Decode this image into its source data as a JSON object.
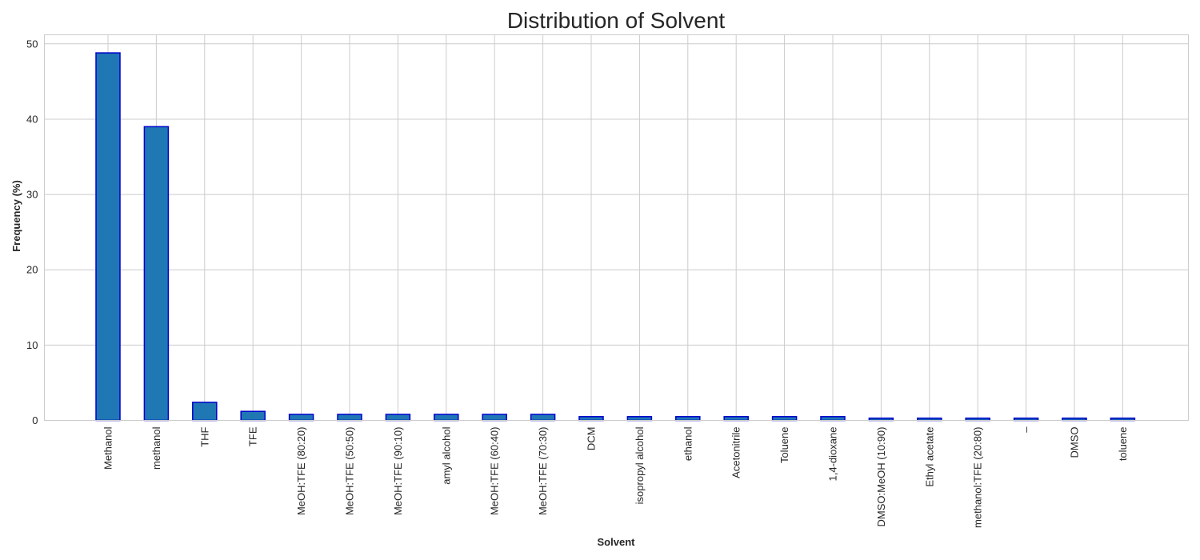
{
  "chart_data": {
    "type": "bar",
    "title": "Distribution of Solvent",
    "xlabel": "Solvent",
    "ylabel": "Frequency (%)",
    "ylim": [
      0,
      51.2
    ],
    "yticks": [
      0,
      10,
      20,
      30,
      40,
      50
    ],
    "grid": true,
    "categories": [
      "Methanol",
      "methanol",
      "THF",
      "TFE",
      "MeOH:TFE (80:20)",
      "MeOH:TFE (50:50)",
      "MeOH:TFE (90:10)",
      "amyl alcohol",
      "MeOH:TFE (60:40)",
      "MeOH:TFE (70:30)",
      "DCM",
      "isopropyl alcohol",
      "ethanol",
      "Acetonitrile",
      "Toluene",
      "1,4-dioxane",
      "DMSO:MeOH (10:90)",
      "Ethyl acetate",
      "methanol:TFE (20:80)",
      "–",
      "DMSO",
      "toluene"
    ],
    "values": [
      48.8,
      39.0,
      2.4,
      1.2,
      0.8,
      0.8,
      0.8,
      0.8,
      0.8,
      0.8,
      0.5,
      0.5,
      0.5,
      0.5,
      0.5,
      0.5,
      0.3,
      0.3,
      0.3,
      0.3,
      0.3,
      0.3
    ],
    "colors": {
      "bar_fill": "#1f77b4",
      "bar_edge": "#0000cd",
      "grid": "#cccccc"
    }
  }
}
